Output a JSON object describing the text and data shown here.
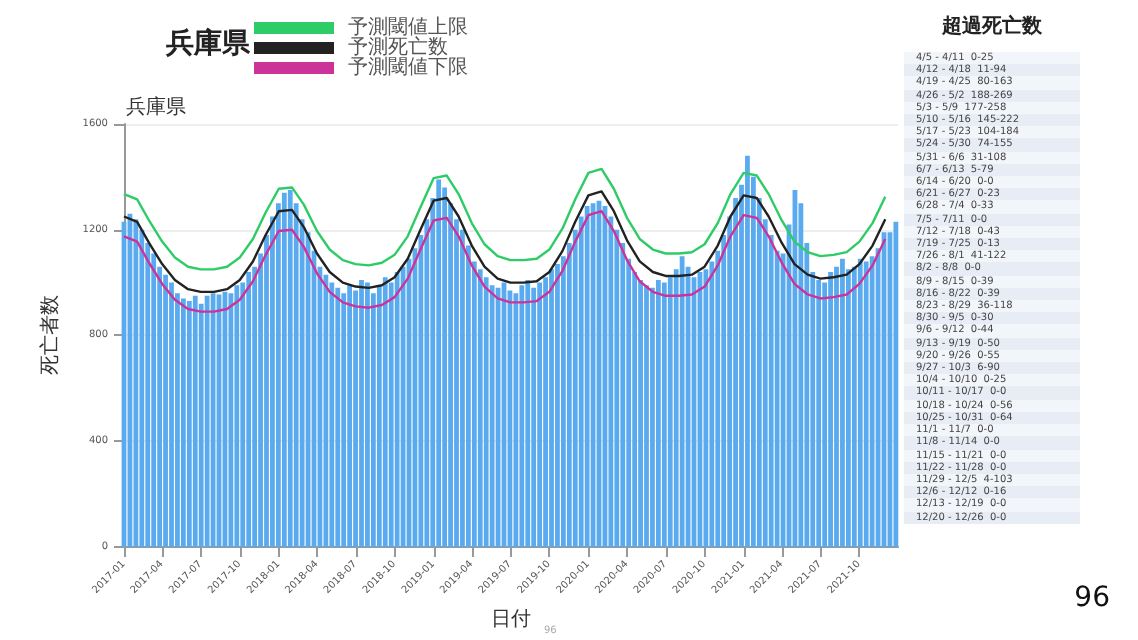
{
  "chart_data": [
    {
      "type": "bar",
      "title": "兵庫県",
      "subtitle": "兵庫県",
      "xlabel": "日付",
      "ylabel": "死亡者数",
      "annotations": [
        "96",
        "96"
      ],
      "legend": "top left",
      "grid": "y",
      "ylim": [
        0,
        1600
      ],
      "yticks": [
        0,
        400,
        800,
        1200,
        1600
      ],
      "xlim": [
        "2017-01-01",
        "2021-12-31"
      ],
      "xticks": [
        "2017-01",
        "2017-04",
        "2017-07",
        "2017-10",
        "2018-01",
        "2018-04",
        "2018-07",
        "2018-10",
        "2019-01",
        "2019-04",
        "2019-07",
        "2019-10",
        "2020-01",
        "2020-04",
        "2020-07",
        "2020-10",
        "2021-01",
        "2021-04",
        "2021-07",
        "2021-10"
      ],
      "x": [
        "2017-01-01",
        "2017-01-15",
        "2017-01-29",
        "2017-02-12",
        "2017-02-26",
        "2017-03-12",
        "2017-03-26",
        "2017-04-09",
        "2017-04-23",
        "2017-05-07",
        "2017-05-21",
        "2017-06-04",
        "2017-06-18",
        "2017-07-02",
        "2017-07-16",
        "2017-07-30",
        "2017-08-13",
        "2017-08-27",
        "2017-09-10",
        "2017-09-24",
        "2017-10-08",
        "2017-10-22",
        "2017-11-05",
        "2017-11-19",
        "2017-12-03",
        "2017-12-17",
        "2017-12-31",
        "2018-01-14",
        "2018-01-28",
        "2018-02-11",
        "2018-02-25",
        "2018-03-11",
        "2018-03-25",
        "2018-04-08",
        "2018-04-22",
        "2018-05-06",
        "2018-05-20",
        "2018-06-03",
        "2018-06-17",
        "2018-07-01",
        "2018-07-15",
        "2018-07-29",
        "2018-08-12",
        "2018-08-26",
        "2018-09-09",
        "2018-09-23",
        "2018-10-07",
        "2018-10-21",
        "2018-11-04",
        "2018-11-18",
        "2018-12-02",
        "2018-12-16",
        "2018-12-30",
        "2019-01-13",
        "2019-01-27",
        "2019-02-10",
        "2019-02-24",
        "2019-03-10",
        "2019-03-24",
        "2019-04-07",
        "2019-04-21",
        "2019-05-05",
        "2019-05-19",
        "2019-06-02",
        "2019-06-16",
        "2019-06-30",
        "2019-07-14",
        "2019-07-28",
        "2019-08-11",
        "2019-08-25",
        "2019-09-08",
        "2019-09-22",
        "2019-10-06",
        "2019-10-20",
        "2019-11-03",
        "2019-11-17",
        "2019-12-01",
        "2019-12-15",
        "2019-12-29",
        "2020-01-12",
        "2020-01-26",
        "2020-02-09",
        "2020-02-23",
        "2020-03-08",
        "2020-03-22",
        "2020-04-05",
        "2020-04-19",
        "2020-05-03",
        "2020-05-17",
        "2020-05-31",
        "2020-06-14",
        "2020-06-28",
        "2020-07-12",
        "2020-07-26",
        "2020-08-09",
        "2020-08-23",
        "2020-09-06",
        "2020-09-20",
        "2020-10-04",
        "2020-10-18",
        "2020-11-01",
        "2020-11-15",
        "2020-11-29",
        "2020-12-13",
        "2020-12-27",
        "2021-01-10",
        "2021-01-24",
        "2021-02-07",
        "2021-02-21",
        "2021-03-07",
        "2021-03-21",
        "2021-04-04",
        "2021-04-18",
        "2021-05-02",
        "2021-05-16",
        "2021-05-30",
        "2021-06-13",
        "2021-06-27",
        "2021-07-11",
        "2021-07-25",
        "2021-08-08",
        "2021-08-22",
        "2021-09-05",
        "2021-09-19",
        "2021-10-03",
        "2021-10-17",
        "2021-10-31",
        "2021-11-14",
        "2021-11-28",
        "2021-12-12",
        "2021-12-26"
      ],
      "series": [
        {
          "color": "#5aaaf0",
          "values": [
            1230,
            1260,
            1240,
            1200,
            1150,
            1110,
            1060,
            1030,
            1000,
            960,
            940,
            930,
            950,
            920,
            950,
            960,
            955,
            965,
            960,
            990,
            1000,
            1040,
            1060,
            1110,
            1180,
            1250,
            1300,
            1340,
            1350,
            1300,
            1240,
            1190,
            1120,
            1060,
            1030,
            1000,
            980,
            960,
            990,
            970,
            1010,
            1000,
            960,
            990,
            1020,
            1000,
            1040,
            1060,
            1090,
            1130,
            1180,
            1240,
            1320,
            1390,
            1360,
            1300,
            1240,
            1200,
            1140,
            1080,
            1050,
            1020,
            990,
            980,
            1000,
            970,
            960,
            990,
            1010,
            980,
            1000,
            1020,
            1050,
            1070,
            1100,
            1150,
            1200,
            1250,
            1290,
            1300,
            1310,
            1290,
            1250,
            1200,
            1150,
            1090,
            1040,
            1010,
            990,
            980,
            1010,
            1000,
            1020,
            1050,
            1100,
            1060,
            1020,
            1040,
            1050,
            1080,
            1120,
            1180,
            1250,
            1320,
            1370,
            1480,
            1400,
            1320,
            1240,
            1180,
            1120,
            1110,
            1220,
            1350,
            1300,
            1150,
            1040,
            1010,
            1000,
            1040,
            1060,
            1090,
            1050,
            1060,
            1090,
            1080,
            1100,
            1130,
            1190,
            1190,
            1230
          ]
        },
        {
          "name": "予測閾値上限",
          "type": "line",
          "color": "#2ecc66",
          "x": [
            "2017-01",
            "2017-02",
            "2017-03",
            "2017-04",
            "2017-05",
            "2017-06",
            "2017-07",
            "2017-08",
            "2017-09",
            "2017-10",
            "2017-11",
            "2017-12",
            "2018-01",
            "2018-02",
            "2018-03",
            "2018-04",
            "2018-05",
            "2018-06",
            "2018-07",
            "2018-08",
            "2018-09",
            "2018-10",
            "2018-11",
            "2018-12",
            "2019-01",
            "2019-02",
            "2019-03",
            "2019-04",
            "2019-05",
            "2019-06",
            "2019-07",
            "2019-08",
            "2019-09",
            "2019-10",
            "2019-11",
            "2019-12",
            "2020-01",
            "2020-02",
            "2020-03",
            "2020-04",
            "2020-05",
            "2020-06",
            "2020-07",
            "2020-08",
            "2020-09",
            "2020-10",
            "2020-11",
            "2020-12",
            "2021-01",
            "2021-02",
            "2021-03",
            "2021-04",
            "2021-05",
            "2021-06",
            "2021-07",
            "2021-08",
            "2021-09",
            "2021-10",
            "2021-11",
            "2021-12"
          ],
          "values": [
            1335,
            1315,
            1235,
            1155,
            1095,
            1060,
            1050,
            1050,
            1060,
            1095,
            1165,
            1265,
            1355,
            1360,
            1295,
            1195,
            1125,
            1085,
            1070,
            1065,
            1075,
            1105,
            1175,
            1285,
            1395,
            1405,
            1335,
            1225,
            1145,
            1100,
            1085,
            1085,
            1090,
            1125,
            1205,
            1315,
            1415,
            1430,
            1355,
            1245,
            1165,
            1125,
            1110,
            1110,
            1115,
            1145,
            1225,
            1335,
            1415,
            1405,
            1335,
            1235,
            1155,
            1115,
            1100,
            1105,
            1115,
            1155,
            1225,
            1325
          ]
        },
        {
          "name": "予測死亡数",
          "type": "line",
          "color": "#222222",
          "x": [
            "2017-01",
            "2017-02",
            "2017-03",
            "2017-04",
            "2017-05",
            "2017-06",
            "2017-07",
            "2017-08",
            "2017-09",
            "2017-10",
            "2017-11",
            "2017-12",
            "2018-01",
            "2018-02",
            "2018-03",
            "2018-04",
            "2018-05",
            "2018-06",
            "2018-07",
            "2018-08",
            "2018-09",
            "2018-10",
            "2018-11",
            "2018-12",
            "2019-01",
            "2019-02",
            "2019-03",
            "2019-04",
            "2019-05",
            "2019-06",
            "2019-07",
            "2019-08",
            "2019-09",
            "2019-10",
            "2019-11",
            "2019-12",
            "2020-01",
            "2020-02",
            "2020-03",
            "2020-04",
            "2020-05",
            "2020-06",
            "2020-07",
            "2020-08",
            "2020-09",
            "2020-10",
            "2020-11",
            "2020-12",
            "2021-01",
            "2021-02",
            "2021-03",
            "2021-04",
            "2021-05",
            "2021-06",
            "2021-07",
            "2021-08",
            "2021-09",
            "2021-10",
            "2021-11",
            "2021-12"
          ],
          "values": [
            1250,
            1230,
            1150,
            1070,
            1010,
            975,
            965,
            965,
            975,
            1010,
            1080,
            1180,
            1270,
            1275,
            1210,
            1110,
            1040,
            1000,
            985,
            980,
            990,
            1020,
            1090,
            1200,
            1310,
            1320,
            1250,
            1140,
            1060,
            1015,
            1000,
            1000,
            1005,
            1040,
            1120,
            1230,
            1330,
            1345,
            1270,
            1160,
            1080,
            1040,
            1025,
            1025,
            1030,
            1060,
            1140,
            1250,
            1330,
            1320,
            1250,
            1150,
            1070,
            1030,
            1015,
            1020,
            1030,
            1070,
            1140,
            1240
          ]
        },
        {
          "name": "予測閾値下限",
          "type": "line",
          "color": "#cc3399",
          "x": [
            "2017-01",
            "2017-02",
            "2017-03",
            "2017-04",
            "2017-05",
            "2017-06",
            "2017-07",
            "2017-08",
            "2017-09",
            "2017-10",
            "2017-11",
            "2017-12",
            "2018-01",
            "2018-02",
            "2018-03",
            "2018-04",
            "2018-05",
            "2018-06",
            "2018-07",
            "2018-08",
            "2018-09",
            "2018-10",
            "2018-11",
            "2018-12",
            "2019-01",
            "2019-02",
            "2019-03",
            "2019-04",
            "2019-05",
            "2019-06",
            "2019-07",
            "2019-08",
            "2019-09",
            "2019-10",
            "2019-11",
            "2019-12",
            "2020-01",
            "2020-02",
            "2020-03",
            "2020-04",
            "2020-05",
            "2020-06",
            "2020-07",
            "2020-08",
            "2020-09",
            "2020-10",
            "2020-11",
            "2020-12",
            "2021-01",
            "2021-02",
            "2021-03",
            "2021-04",
            "2021-05",
            "2021-06",
            "2021-07",
            "2021-08",
            "2021-09",
            "2021-10",
            "2021-11",
            "2021-12"
          ],
          "values": [
            1175,
            1155,
            1075,
            995,
            935,
            900,
            890,
            890,
            900,
            935,
            1005,
            1105,
            1195,
            1200,
            1135,
            1035,
            965,
            925,
            910,
            905,
            915,
            945,
            1015,
            1125,
            1235,
            1245,
            1175,
            1065,
            985,
            940,
            925,
            925,
            930,
            965,
            1045,
            1155,
            1255,
            1270,
            1195,
            1085,
            1005,
            965,
            950,
            950,
            955,
            985,
            1065,
            1175,
            1255,
            1245,
            1175,
            1075,
            995,
            955,
            940,
            945,
            955,
            995,
            1065,
            1165
          ]
        }
      ]
    },
    {
      "type": "other",
      "title": "超過死亡数",
      "annotations": [
        "4/5 - 4/11  0-25",
        "4/12 - 4/18  11-94",
        "4/19 - 4/25  80-163",
        "4/26 - 5/2  188-269",
        "5/3 - 5/9  177-258",
        "5/10 - 5/16  145-222",
        "5/17 - 5/23  104-184",
        "5/24 - 5/30  74-155",
        "5/31 - 6/6  31-108",
        "6/7 - 6/13  5-79",
        "6/14 - 6/20  0-0",
        "6/21 - 6/27  0-23",
        "6/28 - 7/4  0-33",
        "7/5 - 7/11  0-0",
        "7/12 - 7/18  0-43",
        "7/19 - 7/25  0-13",
        "7/26 - 8/1  41-122",
        "8/2 - 8/8  0-0",
        "8/9 - 8/15  0-39",
        "8/16 - 8/22  0-39",
        "8/23 - 8/29  36-118",
        "8/30 - 9/5  0-30",
        "9/6 - 9/12  0-44",
        "9/13 - 9/19  0-50",
        "9/20 - 9/26  0-55",
        "9/27 - 10/3  6-90",
        "10/4 - 10/10  0-25",
        "10/11 - 10/17  0-0",
        "10/18 - 10/24  0-56",
        "10/25 - 10/31  0-64",
        "11/1 - 11/7  0-0",
        "11/8 - 11/14  0-0",
        "11/15 - 11/21  0-0",
        "11/22 - 11/28  0-0",
        "11/29 - 12/5  4-103",
        "12/6 - 12/12  0-16",
        "12/13 - 12/19  0-0",
        "12/20 - 12/26  0-0"
      ]
    }
  ]
}
